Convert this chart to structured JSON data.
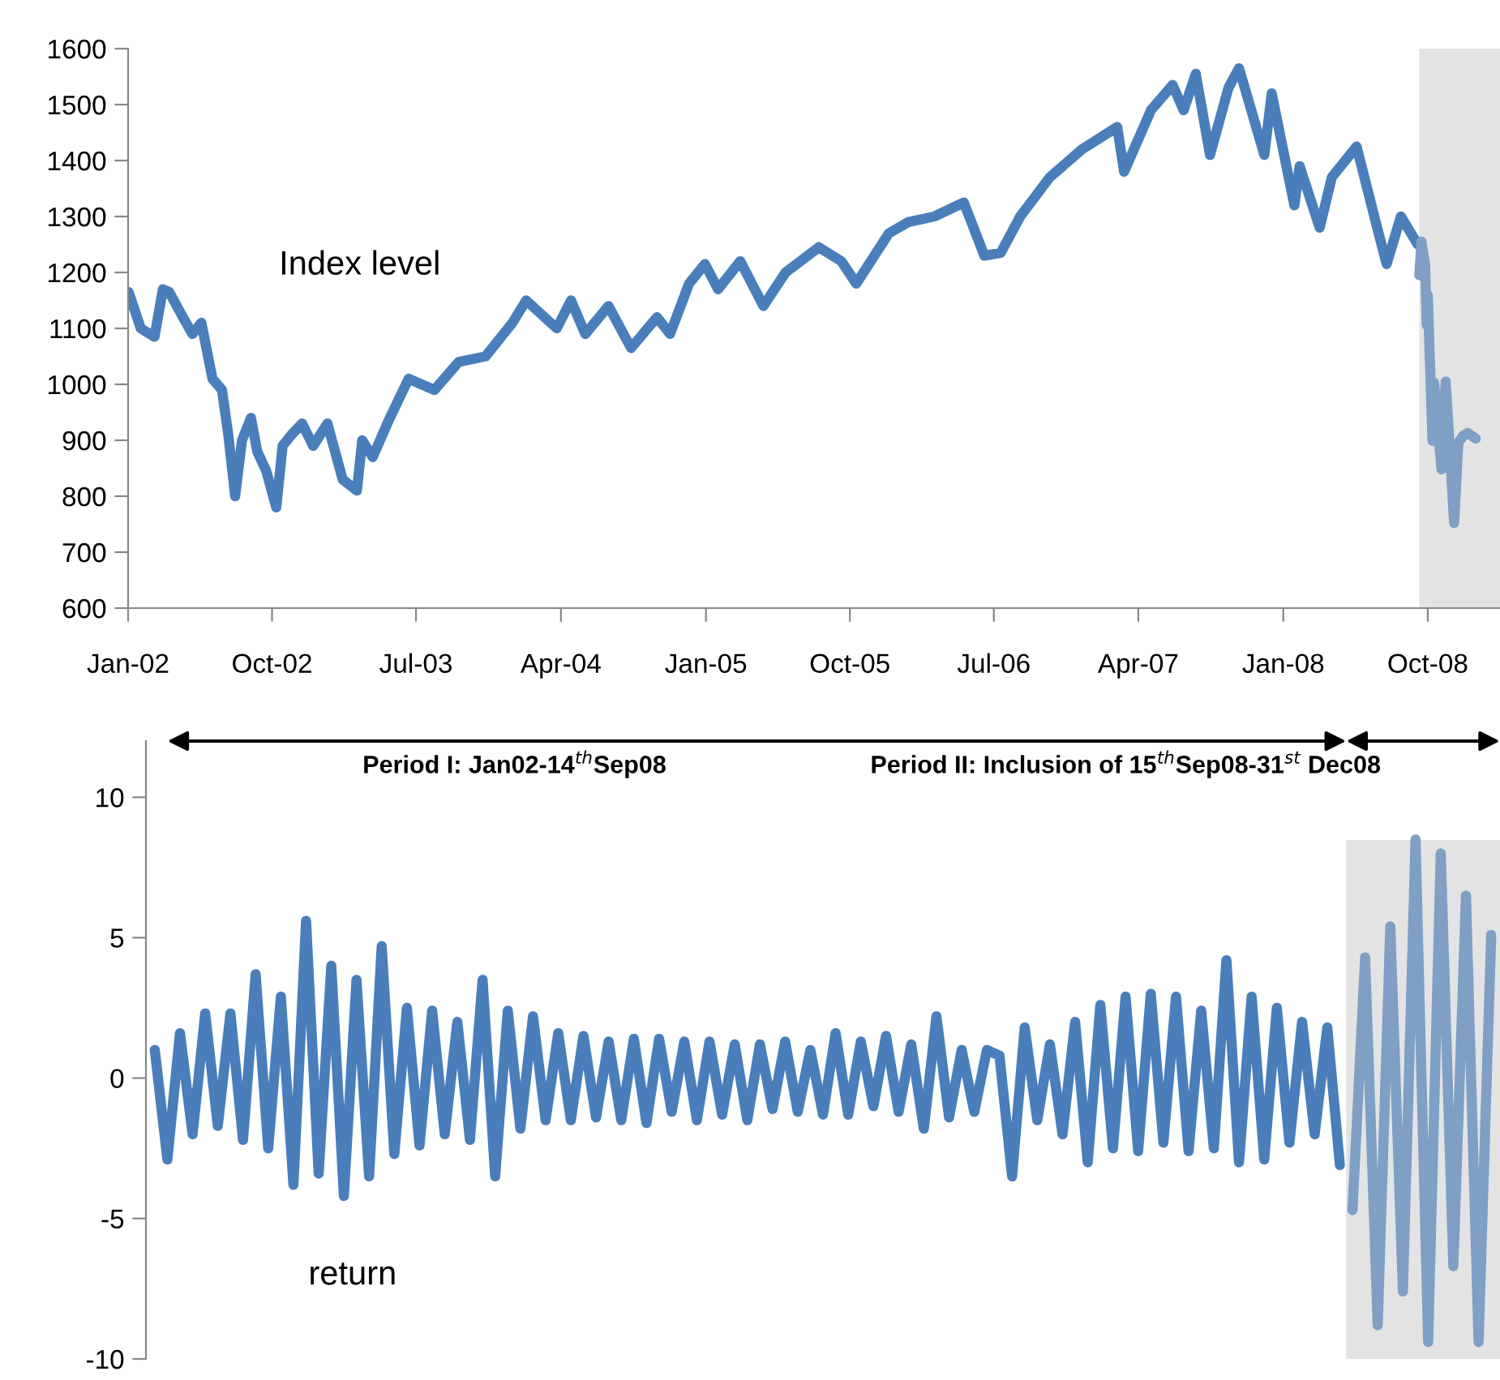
{
  "chart_data": [
    {
      "type": "line",
      "annotations": [
        "Index level"
      ],
      "xlim": [
        "2002-01-01",
        "2009-02-15"
      ],
      "xticks": [
        {
          "value": "2002-01-01",
          "label": "Jan-02"
        },
        {
          "value": "2002-10-01",
          "label": "Oct-02"
        },
        {
          "value": "2003-07-01",
          "label": "Jul-03"
        },
        {
          "value": "2004-04-01",
          "label": "Apr-04"
        },
        {
          "value": "2005-01-01",
          "label": "Jan-05"
        },
        {
          "value": "2005-10-01",
          "label": "Oct-05"
        },
        {
          "value": "2006-07-01",
          "label": "Jul-06"
        },
        {
          "value": "2007-04-01",
          "label": "Apr-07"
        },
        {
          "value": "2008-01-01",
          "label": "Jan-08"
        },
        {
          "value": "2008-10-01",
          "label": "Oct-08"
        }
      ],
      "ylim": [
        600,
        1600
      ],
      "yticks": [
        600,
        700,
        800,
        900,
        1000,
        1100,
        1200,
        1300,
        1400,
        1500,
        1600
      ],
      "bands": [
        {
          "axis": "x",
          "from": "2008-09-15",
          "to": "2009-02-15",
          "color": "#e3e3e3"
        }
      ],
      "series": [
        {
          "color": "#4a7ebb",
          "x": [
            "2002-01-02",
            "2002-01-25",
            "2002-02-20",
            "2002-03-08",
            "2002-03-20",
            "2002-04-15",
            "2002-05-03",
            "2002-05-20",
            "2002-06-10",
            "2002-06-28",
            "2002-07-10",
            "2002-07-23",
            "2002-08-05",
            "2002-08-22",
            "2002-09-03",
            "2002-09-20",
            "2002-10-09",
            "2002-10-21",
            "2002-11-07",
            "2002-11-27",
            "2002-12-18",
            "2003-01-14",
            "2003-02-12",
            "2003-03-11",
            "2003-03-21",
            "2003-04-10",
            "2003-05-10",
            "2003-06-17",
            "2003-08-05",
            "2003-09-20",
            "2003-11-10",
            "2003-12-31",
            "2004-01-26",
            "2004-03-24",
            "2004-04-20",
            "2004-05-17",
            "2004-06-30",
            "2004-08-12",
            "2004-09-30",
            "2004-10-25",
            "2004-11-30",
            "2004-12-30",
            "2005-01-24",
            "2005-03-07",
            "2005-04-20",
            "2005-06-01",
            "2005-08-03",
            "2005-09-15",
            "2005-10-13",
            "2005-12-14",
            "2006-01-20",
            "2006-03-10",
            "2006-05-05",
            "2006-06-13",
            "2006-07-14",
            "2006-08-20",
            "2006-10-15",
            "2006-12-15",
            "2007-02-20",
            "2007-03-05",
            "2007-04-25",
            "2007-06-05",
            "2007-06-26",
            "2007-07-19",
            "2007-08-15",
            "2007-09-19",
            "2007-10-09",
            "2007-11-26",
            "2007-12-10",
            "2008-01-22",
            "2008-02-01",
            "2008-03-10",
            "2008-04-02",
            "2008-05-19",
            "2008-06-27",
            "2008-07-15",
            "2008-08-11",
            "2008-09-12"
          ],
          "values": [
            1165,
            1100,
            1085,
            1170,
            1165,
            1120,
            1090,
            1110,
            1010,
            990,
            910,
            800,
            900,
            940,
            880,
            845,
            780,
            890,
            910,
            930,
            890,
            930,
            830,
            810,
            900,
            870,
            935,
            1010,
            990,
            1040,
            1050,
            1110,
            1150,
            1100,
            1150,
            1090,
            1140,
            1065,
            1120,
            1090,
            1180,
            1215,
            1170,
            1220,
            1140,
            1200,
            1245,
            1220,
            1180,
            1270,
            1290,
            1300,
            1325,
            1230,
            1235,
            1300,
            1370,
            1420,
            1460,
            1380,
            1490,
            1535,
            1490,
            1555,
            1410,
            1530,
            1565,
            1410,
            1520,
            1320,
            1390,
            1280,
            1370,
            1425,
            1280,
            1215,
            1300,
            1250
          ]
        },
        {
          "color": "#7f9fc4",
          "x": [
            "2008-09-15",
            "2008-09-19",
            "2008-09-26",
            "2008-09-29",
            "2008-10-01",
            "2008-10-10",
            "2008-10-13",
            "2008-10-27",
            "2008-11-04",
            "2008-11-20",
            "2008-11-28",
            "2008-12-08",
            "2008-12-16",
            "2008-12-31"
          ],
          "values": [
            1195,
            1255,
            1213,
            1106,
            1160,
            899,
            1003,
            848,
            1005,
            752,
            896,
            909,
            913,
            903
          ]
        }
      ]
    },
    {
      "type": "line",
      "annotations": [
        "Period I: Jan02-14$^{th}$Sep08",
        "Period II: Inclusion of 15$^{th}$Sep08-31$^{st}$ Dec08",
        "return"
      ],
      "categories": [
        null,
        null,
        null,
        null,
        null,
        null,
        null,
        null,
        null,
        null,
        null,
        null,
        null,
        null,
        null,
        null,
        null,
        null,
        null,
        null,
        null,
        null,
        null,
        null,
        null,
        null,
        null,
        null,
        null,
        null,
        null,
        null,
        null,
        null,
        null,
        null,
        null,
        null,
        null,
        null,
        null,
        null,
        null,
        null,
        null,
        null,
        null,
        null,
        null,
        null,
        null,
        null,
        null,
        null,
        null,
        null,
        null,
        null,
        null,
        null,
        null,
        null,
        null,
        null,
        null,
        null,
        null,
        null,
        null,
        null,
        null,
        null,
        null,
        null,
        null,
        null,
        null,
        null,
        null,
        null,
        null,
        null,
        null,
        null,
        null,
        null,
        null,
        null,
        null,
        null,
        null,
        null,
        null,
        null,
        null,
        null,
        null,
        null,
        null,
        null,
        null,
        null,
        null,
        null,
        null,
        null,
        null
      ],
      "ylim": [
        -10,
        12
      ],
      "yticks": [
        -10,
        -5,
        0,
        5,
        10
      ],
      "tick_labels": "y",
      "series": [
        {
          "color": "#4a7ebb",
          "values": [
            1.0,
            -2.9,
            1.6,
            -2.0,
            2.3,
            -1.7,
            2.3,
            -2.2,
            3.7,
            -2.5,
            2.9,
            -3.8,
            5.6,
            -3.4,
            4.0,
            -4.2,
            3.5,
            -3.5,
            4.7,
            -2.7,
            2.5,
            -2.4,
            2.4,
            -2.0,
            2.0,
            -2.2,
            3.5,
            -3.5,
            2.4,
            -1.8,
            2.2,
            -1.5,
            1.6,
            -1.5,
            1.5,
            -1.4,
            1.3,
            -1.5,
            1.4,
            -1.6,
            1.4,
            -1.2,
            1.3,
            -1.5,
            1.3,
            -1.3,
            1.2,
            -1.5,
            1.2,
            -1.1,
            1.3,
            -1.2,
            1.0,
            -1.3,
            1.6,
            -1.3,
            1.3,
            -1.0,
            1.5,
            -1.2,
            1.2,
            -1.8,
            2.2,
            -1.4,
            1.0,
            -1.2,
            1.0,
            0.8,
            -3.5,
            1.8,
            -1.5,
            1.2,
            -2.0,
            2.0,
            -3.0,
            2.6,
            -2.5,
            2.9,
            -2.6,
            3.0,
            -2.3,
            2.9,
            -2.6,
            2.4,
            -2.5,
            4.2,
            -3.0,
            2.9,
            -2.9,
            2.5,
            -2.3,
            2.0,
            -2.0,
            1.8,
            -3.1,
            null,
            null,
            null,
            null,
            null,
            null,
            null,
            null,
            null,
            null,
            null,
            null
          ]
        },
        {
          "color": "#7f9fc4",
          "values": [
            null,
            null,
            null,
            null,
            null,
            null,
            null,
            null,
            null,
            null,
            null,
            null,
            null,
            null,
            null,
            null,
            null,
            null,
            null,
            null,
            null,
            null,
            null,
            null,
            null,
            null,
            null,
            null,
            null,
            null,
            null,
            null,
            null,
            null,
            null,
            null,
            null,
            null,
            null,
            null,
            null,
            null,
            null,
            null,
            null,
            null,
            null,
            null,
            null,
            null,
            null,
            null,
            null,
            null,
            null,
            null,
            null,
            null,
            null,
            null,
            null,
            null,
            null,
            null,
            null,
            null,
            null,
            null,
            null,
            null,
            null,
            null,
            null,
            null,
            null,
            null,
            null,
            null,
            null,
            null,
            null,
            null,
            null,
            null,
            null,
            null,
            null,
            null,
            null,
            null,
            null,
            null,
            null,
            null,
            null,
            -4.7,
            4.3,
            -8.8,
            5.4,
            -7.6,
            8.5,
            -9.4,
            8.0,
            -6.7,
            6.5,
            -9.4,
            5.1
          ]
        }
      ]
    }
  ]
}
